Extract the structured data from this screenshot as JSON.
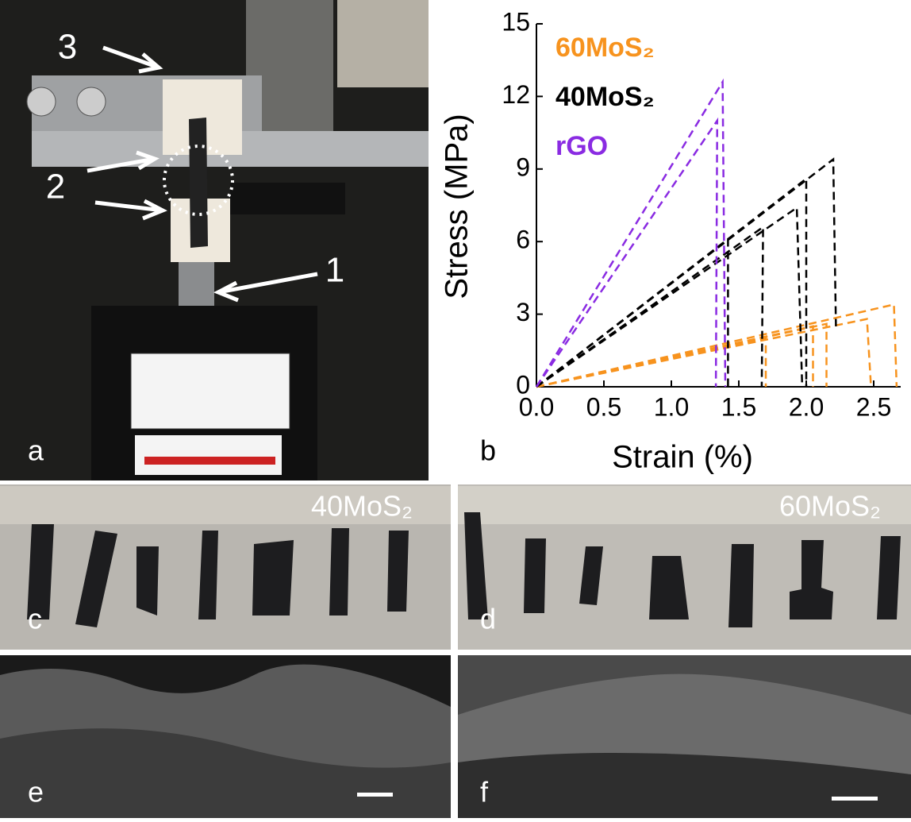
{
  "panel_labels": [
    "a",
    "b",
    "c",
    "d",
    "e",
    "f"
  ],
  "photo_a": {
    "annotations": [
      "3",
      "2",
      "1"
    ]
  },
  "photo_c": {
    "label": "40MoS₂"
  },
  "photo_d": {
    "label": "60MoS₂"
  },
  "chart_data": {
    "type": "line",
    "xlabel": "Strain (%)",
    "ylabel": "Stress (MPa)",
    "xlim": [
      0,
      2.7
    ],
    "ylim": [
      0,
      15
    ],
    "xticks": [
      {
        "value": 0,
        "label": "0.0"
      },
      0.5,
      {
        "value": 1,
        "label": "1.0"
      },
      1.5,
      {
        "value": 2,
        "label": "2.0"
      },
      2.5
    ],
    "yticks": [
      0,
      3,
      6,
      9,
      12,
      15
    ],
    "series": [
      {
        "name": "60MoS₂",
        "color": "#f7931e",
        "specimens": [
          {
            "x": [
              0,
              2.65,
              2.67
            ],
            "values": [
              0,
              3.4,
              0
            ]
          },
          {
            "x": [
              0,
              2.45,
              2.48
            ],
            "values": [
              0,
              2.8,
              0
            ]
          },
          {
            "x": [
              0,
              2.15,
              2.15
            ],
            "values": [
              0,
              2.6,
              0
            ]
          },
          {
            "x": [
              0,
              2.05,
              2.05
            ],
            "values": [
              0,
              2.5,
              0
            ]
          },
          {
            "x": [
              0,
              1.7,
              1.7
            ],
            "values": [
              0,
              2.0,
              0
            ]
          }
        ]
      },
      {
        "name": "40MoS₂",
        "color": "#000000",
        "specimens": [
          {
            "x": [
              0,
              2.2,
              2.22
            ],
            "values": [
              0,
              9.4,
              2.5
            ]
          },
          {
            "x": [
              0,
              2.0,
              2.0
            ],
            "values": [
              0,
              8.6,
              0
            ]
          },
          {
            "x": [
              0,
              1.93,
              1.97
            ],
            "values": [
              0,
              7.4,
              0
            ]
          },
          {
            "x": [
              0,
              1.68,
              1.67
            ],
            "values": [
              0,
              6.6,
              0
            ]
          },
          {
            "x": [
              0,
              1.42,
              1.42
            ],
            "values": [
              0,
              6.1,
              0
            ]
          }
        ]
      },
      {
        "name": "rGO",
        "color": "#8a2be2",
        "specimens": [
          {
            "x": [
              0,
              1.38,
              1.4
            ],
            "values": [
              0,
              12.6,
              0
            ]
          },
          {
            "x": [
              0,
              1.34,
              1.33
            ],
            "values": [
              0,
              11.0,
              0
            ]
          }
        ]
      }
    ]
  }
}
